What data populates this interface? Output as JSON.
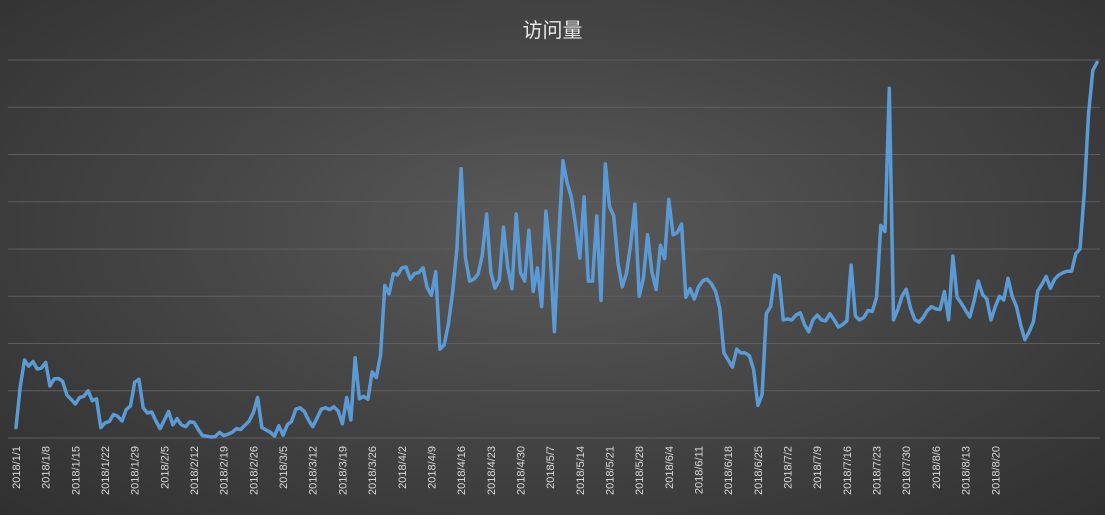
{
  "chart_data": {
    "type": "line",
    "title": "访问量",
    "xlabel": "",
    "ylabel": "",
    "legend": "none",
    "grid": "horizontal",
    "ylim": [
      0,
      800
    ],
    "x_tick_labels": [
      "2018/1/1",
      "2018/1/8",
      "2018/1/15",
      "2018/1/22",
      "2018/1/29",
      "2018/2/5",
      "2018/2/12",
      "2018/2/19",
      "2018/2/26",
      "2018/3/5",
      "2018/3/12",
      "2018/3/19",
      "2018/3/26",
      "2018/4/2",
      "2018/4/9",
      "2018/4/16",
      "2018/4/23",
      "2018/4/30",
      "2018/5/7",
      "2018/5/14",
      "2018/5/21",
      "2018/5/28",
      "2018/6/4",
      "2018/6/11",
      "2018/6/18",
      "2018/6/25",
      "2018/7/2",
      "2018/7/9",
      "2018/7/16",
      "2018/7/23",
      "2018/7/30",
      "2018/8/6",
      "2018/8/13",
      "2018/8/20"
    ],
    "series": [
      {
        "color": "#5b9bd5",
        "values": [
          22,
          108,
          165,
          152,
          162,
          146,
          148,
          160,
          110,
          125,
          126,
          120,
          91,
          82,
          72,
          86,
          88,
          100,
          79,
          83,
          22,
          32,
          35,
          50,
          46,
          36,
          60,
          68,
          118,
          124,
          64,
          53,
          55,
          36,
          20,
          38,
          56,
          28,
          41,
          28,
          24,
          34,
          33,
          18,
          5,
          4,
          2,
          3,
          12,
          5,
          8,
          12,
          20,
          18,
          27,
          36,
          54,
          86,
          22,
          17,
          12,
          4,
          26,
          6,
          28,
          35,
          61,
          64,
          56,
          38,
          24,
          42,
          61,
          64,
          60,
          66,
          57,
          30,
          86,
          38,
          170,
          83,
          88,
          82,
          140,
          128,
          176,
          323,
          305,
          348,
          345,
          360,
          362,
          336,
          348,
          350,
          360,
          318,
          302,
          352,
          188,
          197,
          241,
          308,
          400,
          570,
          382,
          332,
          336,
          347,
          387,
          474,
          351,
          317,
          334,
          446,
          362,
          316,
          474,
          350,
          332,
          440,
          310,
          360,
          278,
          480,
          392,
          225,
          420,
          587,
          540,
          510,
          450,
          381,
          510,
          332,
          332,
          470,
          291,
          580,
          490,
          470,
          370,
          320,
          348,
          410,
          495,
          300,
          338,
          430,
          352,
          314,
          408,
          380,
          505,
          430,
          435,
          453,
          298,
          316,
          294,
          320,
          333,
          336,
          327,
          311,
          275,
          180,
          165,
          150,
          188,
          180,
          180,
          174,
          145,
          69,
          92,
          263,
          278,
          345,
          340,
          250,
          252,
          250,
          260,
          265,
          240,
          225,
          250,
          260,
          250,
          248,
          263,
          250,
          235,
          240,
          248,
          366,
          258,
          250,
          255,
          270,
          268,
          298,
          450,
          437,
          740,
          250,
          272,
          300,
          315,
          275,
          251,
          245,
          255,
          270,
          278,
          273,
          272,
          310,
          250,
          385,
          298,
          285,
          270,
          256,
          290,
          332,
          304,
          294,
          250,
          278,
          300,
          292,
          338,
          300,
          278,
          239,
          208,
          225,
          246,
          311,
          325,
          342,
          317,
          336,
          345,
          350,
          353,
          353,
          390,
          400,
          520,
          685,
          778,
          795
        ]
      }
    ]
  }
}
